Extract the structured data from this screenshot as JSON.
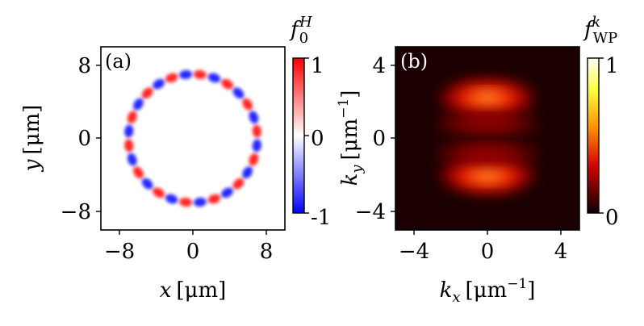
{
  "colors": {
    "blue": "#0000ff",
    "red": "#ff0000",
    "panel_b_bg": "#1a0000"
  },
  "chart_data": [
    {
      "type": "heatmap",
      "panel_label": "(a)",
      "xlabel_var": "x",
      "xlabel_unit": "[μm]",
      "ylabel_var": "y",
      "ylabel_unit": "[μm]",
      "xlim": [
        -10,
        10
      ],
      "ylim": [
        -10,
        10
      ],
      "xticks": [
        -8,
        0,
        8
      ],
      "yticks": [
        -8,
        0,
        8
      ],
      "xtick_labels": [
        "−8",
        "0",
        "8"
      ],
      "ytick_labels": [
        "−8",
        "0",
        "8"
      ],
      "ring": {
        "radius_um": 7.0,
        "lobes": 28,
        "value_range": [
          -1,
          1
        ]
      },
      "colorbar": {
        "title_main": "f",
        "title_sub": "0",
        "title_sup": "H",
        "range": [
          -1,
          1
        ],
        "tick_labels": [
          "1",
          "0",
          "-1"
        ],
        "colormap": "bwr"
      }
    },
    {
      "type": "heatmap",
      "panel_label": "(b)",
      "xlabel_var": "k",
      "xlabel_sub": "x",
      "xlabel_unit": "[μm",
      "xlabel_exp": "−1",
      "xlabel_close": "]",
      "ylabel_var": "k",
      "ylabel_sub": "y",
      "ylabel_unit": "[μm",
      "ylabel_exp": "−1",
      "ylabel_close": "]",
      "xlim": [
        -5,
        5
      ],
      "ylim": [
        -5,
        5
      ],
      "xticks": [
        -4,
        0,
        4
      ],
      "yticks": [
        -4,
        0,
        4
      ],
      "xtick_labels": [
        "−4",
        "0",
        "4"
      ],
      "ytick_labels": [
        "−4",
        "0",
        "4"
      ],
      "lobes": [
        {
          "kx": 0,
          "ky": 2.2,
          "width_kx": 2.0,
          "height_ky": 0.8,
          "peak": 1.0
        },
        {
          "kx": 0,
          "ky": -2.0,
          "width_kx": 2.0,
          "height_ky": 0.8,
          "peak": 1.0
        },
        {
          "kx": 0,
          "ky": 0.8,
          "width_kx": 2.3,
          "height_ky": 0.5,
          "peak": 0.45
        },
        {
          "kx": 0,
          "ky": -0.8,
          "width_kx": 2.3,
          "height_ky": 0.5,
          "peak": 0.45
        }
      ],
      "colorbar": {
        "title_main": "f",
        "title_sub": "WP",
        "title_sup": "k",
        "range": [
          0,
          1
        ],
        "tick_labels": [
          "1",
          "0"
        ],
        "colormap": "hot"
      }
    }
  ]
}
